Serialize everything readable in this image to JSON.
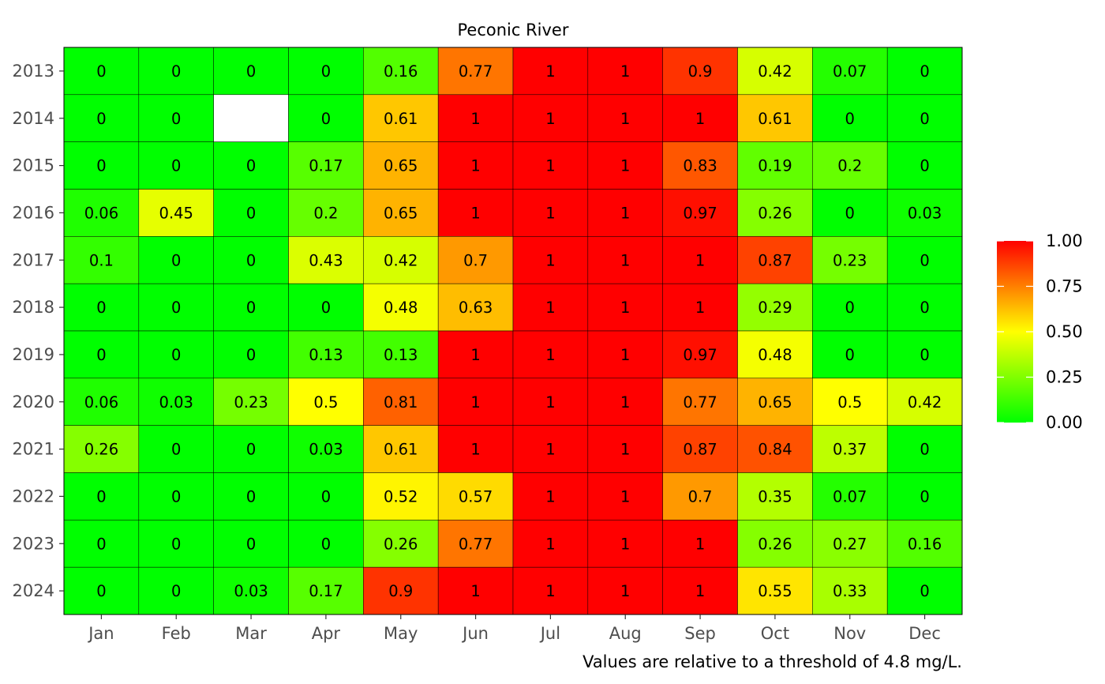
{
  "chart_data": {
    "type": "heatmap",
    "title": "Peconic River",
    "caption": "Values are relative to a threshold of 4.8 mg/L.",
    "x_categories": [
      "Jan",
      "Feb",
      "Mar",
      "Apr",
      "May",
      "Jun",
      "Jul",
      "Aug",
      "Sep",
      "Oct",
      "Nov",
      "Dec"
    ],
    "y_categories": [
      "2013",
      "2014",
      "2015",
      "2016",
      "2017",
      "2018",
      "2019",
      "2020",
      "2021",
      "2022",
      "2023",
      "2024"
    ],
    "values": [
      [
        0,
        0,
        0,
        0,
        0.16,
        0.77,
        1,
        1,
        0.9,
        0.42,
        0.07,
        0
      ],
      [
        0,
        0,
        null,
        0,
        0.61,
        1,
        1,
        1,
        1,
        0.61,
        0,
        0
      ],
      [
        0,
        0,
        0,
        0.17,
        0.65,
        1,
        1,
        1,
        0.83,
        0.19,
        0.2,
        0
      ],
      [
        0.06,
        0.45,
        0,
        0.2,
        0.65,
        1,
        1,
        1,
        0.97,
        0.26,
        0,
        0.03
      ],
      [
        0.1,
        0,
        0,
        0.43,
        0.42,
        0.7,
        1,
        1,
        1,
        0.87,
        0.23,
        0
      ],
      [
        0,
        0,
        0,
        0,
        0.48,
        0.63,
        1,
        1,
        1,
        0.29,
        0,
        0
      ],
      [
        0,
        0,
        0,
        0.13,
        0.13,
        1,
        1,
        1,
        0.97,
        0.48,
        0,
        0
      ],
      [
        0.06,
        0.03,
        0.23,
        0.5,
        0.81,
        1,
        1,
        1,
        0.77,
        0.65,
        0.5,
        0.42
      ],
      [
        0.26,
        0,
        0,
        0.03,
        0.61,
        1,
        1,
        1,
        0.87,
        0.84,
        0.37,
        0
      ],
      [
        0,
        0,
        0,
        0,
        0.52,
        0.57,
        1,
        1,
        0.7,
        0.35,
        0.07,
        0
      ],
      [
        0,
        0,
        0,
        0,
        0.26,
        0.77,
        1,
        1,
        1,
        0.26,
        0.27,
        0.16
      ],
      [
        0,
        0,
        0.03,
        0.17,
        0.9,
        1,
        1,
        1,
        1,
        0.55,
        0.33,
        0
      ]
    ],
    "color_scale": {
      "domain": [
        0,
        0.5,
        1
      ],
      "colors": [
        "#00ff00",
        "#ffff00",
        "#ff0000"
      ],
      "legend_ticks": [
        "0.00",
        "0.25",
        "0.50",
        "0.75",
        "1.00"
      ],
      "legend_position": "right"
    },
    "missing_color": "#ffffff",
    "grid": false
  }
}
